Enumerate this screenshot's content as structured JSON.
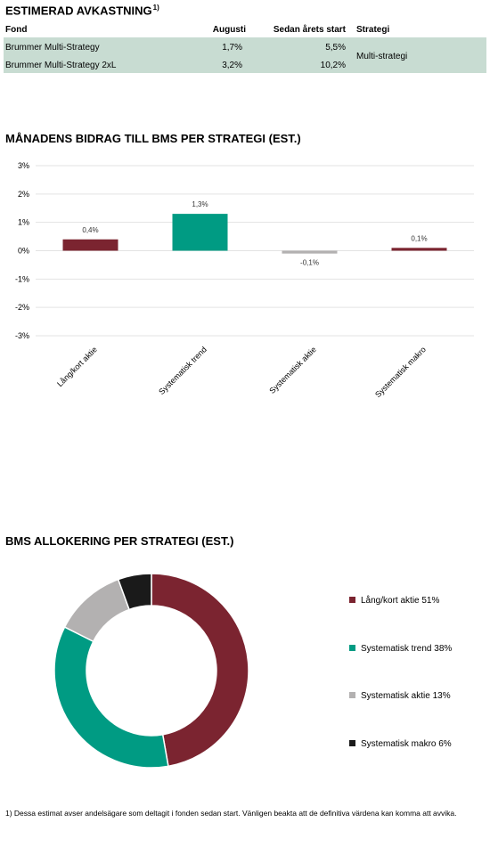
{
  "table": {
    "title": "ESTIMERAD AVKASTNING",
    "title_sup": "1)",
    "headers": {
      "fund": "Fond",
      "month": "Augusti",
      "ytd": "Sedan årets start",
      "strategy": "Strategi"
    },
    "rows": [
      {
        "fund": "Brummer Multi-Strategy",
        "month": "1,7%",
        "ytd": "5,5%"
      },
      {
        "fund": "Brummer Multi-Strategy 2xL",
        "month": "3,2%",
        "ytd": "10,2%"
      }
    ],
    "strategy_value": "Multi-strategi",
    "highlight_color": "#c8dcd2"
  },
  "chart_data": [
    {
      "type": "bar",
      "title": "MÅNADENS BIDRAG TILL BMS PER STRATEGI (EST.)",
      "categories": [
        "Lång/kort aktie",
        "Systematisk trend",
        "Systematisk aktie",
        "Systematisk makro"
      ],
      "values": [
        0.4,
        1.3,
        -0.1,
        0.1
      ],
      "data_labels": [
        "0,4%",
        "1,3%",
        "-0,1%",
        "0,1%"
      ],
      "colors": [
        "#7b2430",
        "#009b83",
        "#b3b1b1",
        "#7b2430"
      ],
      "ylim": [
        -3,
        3
      ],
      "yticks": [
        3,
        2,
        1,
        0,
        -1,
        -2,
        -3
      ],
      "ytick_labels": [
        "3%",
        "2%",
        "1%",
        "0%",
        "-1%",
        "-2%",
        "-3%"
      ],
      "grid": true
    },
    {
      "type": "pie",
      "donut": true,
      "title": "BMS ALLOKERING PER STRATEGI (EST.)",
      "labels": [
        "Lång/kort aktie 51%",
        "Systematisk trend 38%",
        "Systematisk aktie 13%",
        "Systematisk makro 6%"
      ],
      "values": [
        51,
        38,
        13,
        6
      ],
      "colors": [
        "#7b2430",
        "#009b83",
        "#b3b1b1",
        "#1a1a1a"
      ],
      "legend_position": "right"
    }
  ],
  "footnote": "1) Dessa estimat avser andelsägare som deltagit i fonden sedan start. Vänligen beakta att de definitiva värdena kan komma att avvika."
}
